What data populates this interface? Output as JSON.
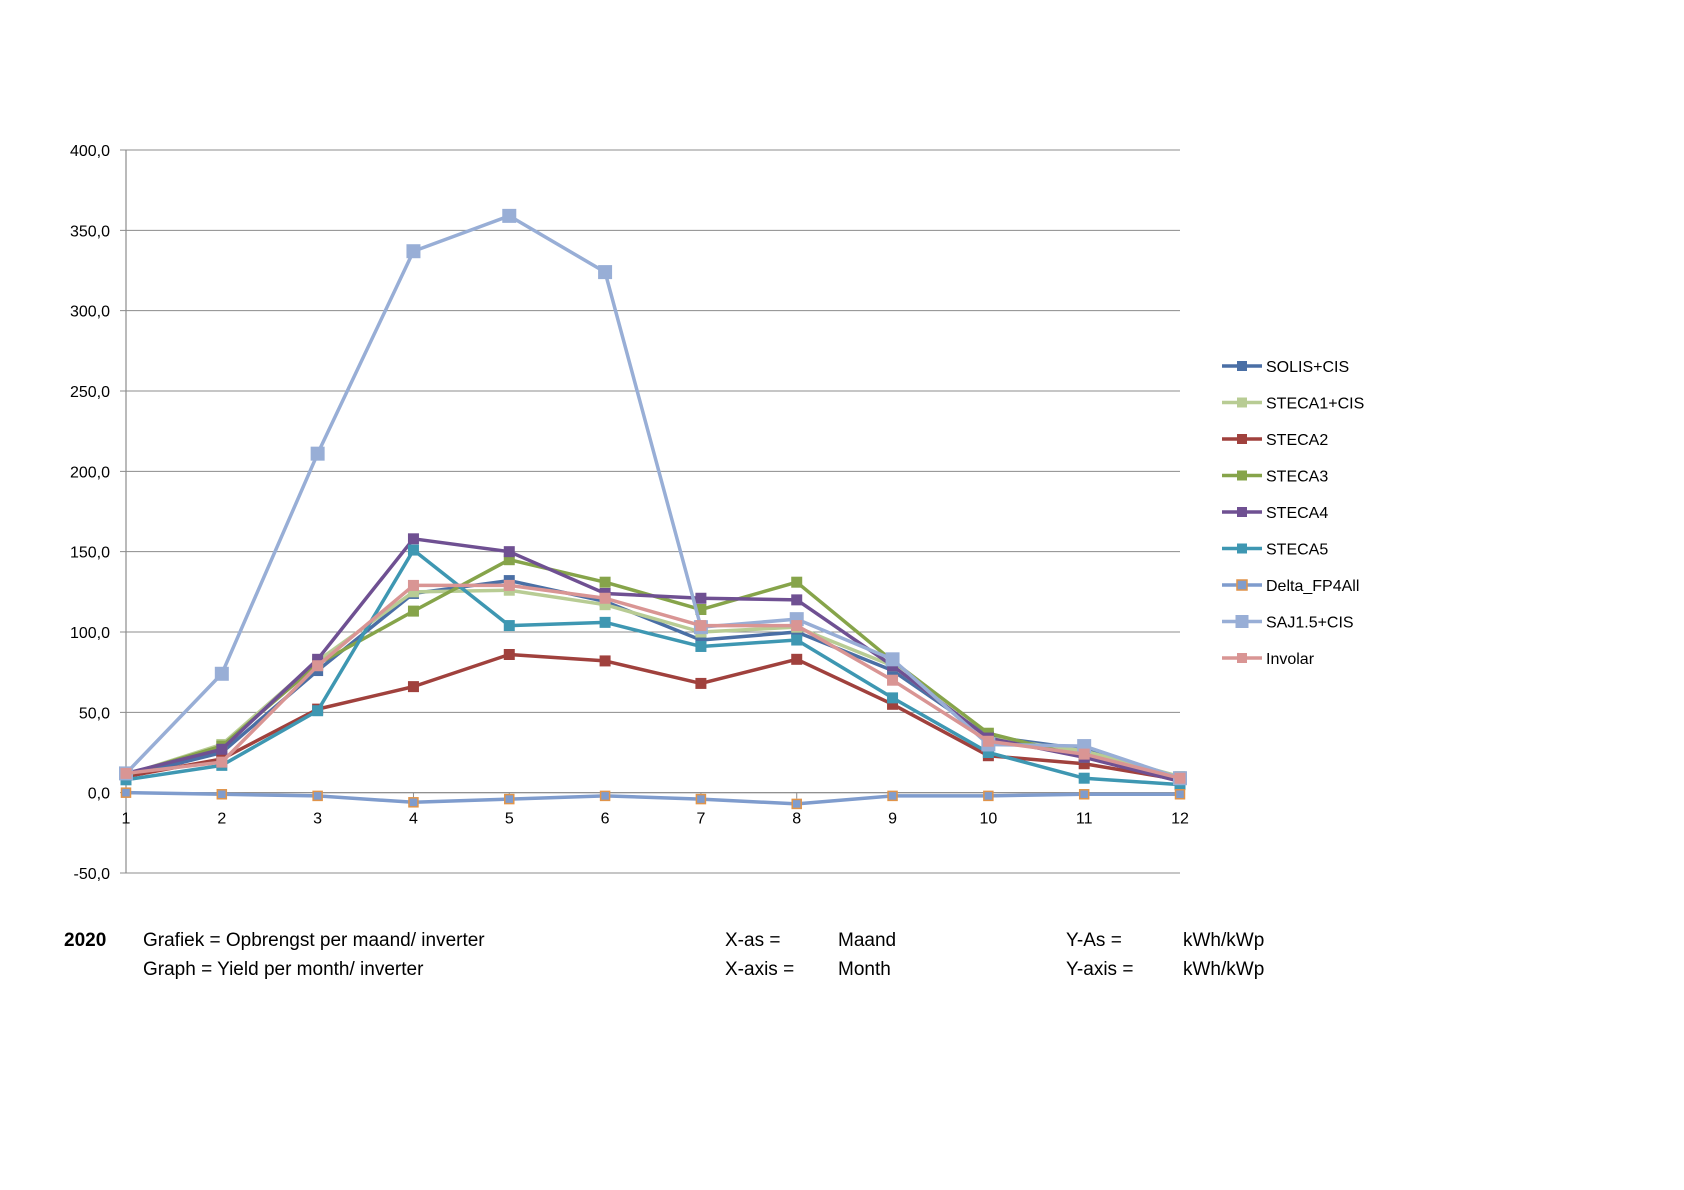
{
  "chart_data": {
    "type": "line",
    "x": [
      1,
      2,
      3,
      4,
      5,
      6,
      7,
      8,
      9,
      10,
      11,
      12
    ],
    "ylim": [
      -50,
      400
    ],
    "yticks": [
      "400,0",
      "350,0",
      "300,0",
      "250,0",
      "200,0",
      "150,0",
      "100,0",
      "50,0",
      "0,0",
      "-50,0"
    ],
    "ytick_values": [
      400,
      350,
      300,
      250,
      200,
      150,
      100,
      50,
      0,
      -50
    ],
    "xticks": [
      "1",
      "2",
      "3",
      "4",
      "5",
      "6",
      "7",
      "8",
      "9",
      "10",
      "11",
      "12"
    ],
    "grid": true,
    "legend": "right",
    "series": [
      {
        "name": "SOLIS+CIS",
        "color": "#4a6fa5",
        "values": [
          10,
          25,
          76,
          124,
          132,
          119,
          95,
          100,
          76,
          35,
          27,
          8
        ]
      },
      {
        "name": "STECA1+CIS",
        "color": "#b8cc94",
        "values": [
          11,
          30,
          82,
          125,
          126,
          117,
          100,
          103,
          79,
          34,
          26,
          10
        ]
      },
      {
        "name": "STECA2",
        "color": "#a0413d",
        "values": [
          10,
          21,
          52,
          66,
          86,
          82,
          68,
          83,
          55,
          23,
          18,
          8
        ]
      },
      {
        "name": "STECA3",
        "color": "#86a44a",
        "values": [
          11,
          29,
          80,
          113,
          145,
          131,
          114,
          131,
          82,
          37,
          22,
          9
        ]
      },
      {
        "name": "STECA4",
        "color": "#6f5092",
        "values": [
          12,
          27,
          83,
          158,
          150,
          124,
          121,
          120,
          79,
          34,
          22,
          7
        ]
      },
      {
        "name": "STECA5",
        "color": "#3e97b2",
        "values": [
          8,
          17,
          51,
          151,
          104,
          106,
          91,
          95,
          59,
          25,
          9,
          5
        ]
      },
      {
        "name": "Delta_FP4All",
        "color": "#7f9ccd",
        "marker_color": "#e0944a",
        "values": [
          0,
          -1,
          -2,
          -6,
          -4,
          -2,
          -4,
          -7,
          -2,
          -2,
          -1,
          -1
        ]
      },
      {
        "name": "SAJ1.5+CIS",
        "color": "#98aed6",
        "values": [
          12,
          74,
          211,
          337,
          359,
          324,
          103,
          108,
          83,
          30,
          29,
          9
        ]
      },
      {
        "name": "Involar",
        "color": "#d99594",
        "values": [
          12,
          19,
          79,
          129,
          129,
          121,
          104,
          104,
          70,
          32,
          24,
          9
        ]
      }
    ]
  },
  "captions": {
    "year": "2020",
    "graph_nl": "Grafiek = Opbrengst per maand/ inverter",
    "graph_en": "Graph = Yield per month/ inverter",
    "xas_label": "X-as =",
    "xas_value": "Maand",
    "xaxis_label": "X-axis =",
    "xaxis_value": "Month",
    "yas_label": "Y-As =",
    "yas_value": "kWh/kWp",
    "yaxis_label": "Y-axis =",
    "yaxis_value": "kWh/kWp"
  }
}
